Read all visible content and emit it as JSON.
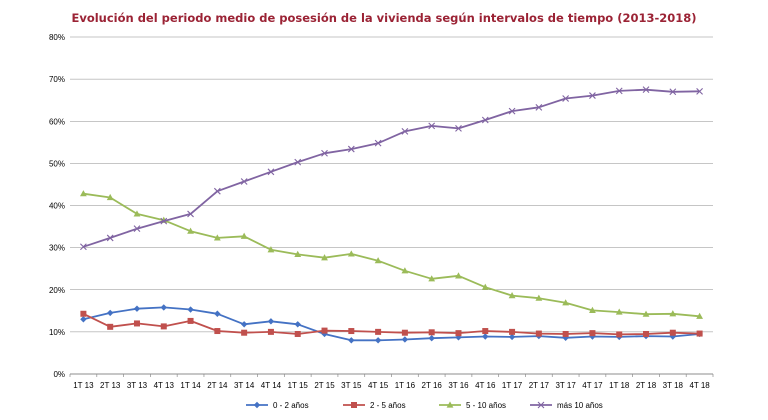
{
  "chart_data": {
    "type": "line",
    "title": "Evolución del periodo medio de posesión de la vivienda según intervalos de tiempo (2013-2018)",
    "xlabel": "",
    "ylabel": "",
    "ylim": [
      0,
      80
    ],
    "y_ticks": [
      "0%",
      "10%",
      "20%",
      "30%",
      "40%",
      "50%",
      "60%",
      "70%",
      "80%"
    ],
    "grid": "horizontal",
    "legend_position": "bottom",
    "categories": [
      "1T 13",
      "2T 13",
      "3T 13",
      "4T 13",
      "1T 14",
      "2T 14",
      "3T 14",
      "4T 14",
      "1T 15",
      "2T 15",
      "3T 15",
      "4T 15",
      "1T 16",
      "2T 16",
      "3T 16",
      "4T 16",
      "1T 17",
      "2T 17",
      "3T 17",
      "4T 17",
      "1T 18",
      "2T 18",
      "3T 18",
      "4T 18"
    ],
    "series": [
      {
        "name": "0 - 2 años",
        "color": "#4472c4",
        "marker": "diamond",
        "values": [
          13.0,
          14.5,
          15.5,
          15.8,
          15.3,
          14.3,
          11.8,
          12.5,
          11.8,
          9.5,
          8.0,
          8.0,
          8.2,
          8.5,
          8.7,
          8.9,
          8.8,
          9.0,
          8.6,
          8.9,
          8.8,
          9.0,
          8.9,
          9.5
        ]
      },
      {
        "name": "2 - 5 años",
        "color": "#c0504d",
        "marker": "square",
        "values": [
          14.3,
          11.2,
          12.0,
          11.3,
          12.6,
          10.2,
          9.8,
          10.0,
          9.5,
          10.3,
          10.2,
          10.0,
          9.8,
          9.9,
          9.7,
          10.2,
          10.0,
          9.6,
          9.5,
          9.7,
          9.4,
          9.5,
          9.8,
          9.6
        ]
      },
      {
        "name": "5 - 10 años",
        "color": "#9bbb59",
        "marker": "triangle",
        "values": [
          42.8,
          41.9,
          38.0,
          36.5,
          33.9,
          32.3,
          32.7,
          29.5,
          28.4,
          27.6,
          28.5,
          26.9,
          24.5,
          22.6,
          23.3,
          20.6,
          18.6,
          18.0,
          16.9,
          15.1,
          14.7,
          14.2,
          14.3,
          13.7
        ]
      },
      {
        "name": "más 10 años",
        "color": "#8064a2",
        "marker": "x",
        "values": [
          30.2,
          32.3,
          34.5,
          36.3,
          38.0,
          43.4,
          45.7,
          48.0,
          50.3,
          52.4,
          53.4,
          54.8,
          57.6,
          58.9,
          58.3,
          60.3,
          62.4,
          63.3,
          65.4,
          66.1,
          67.2,
          67.5,
          67.0,
          67.1
        ]
      }
    ]
  }
}
